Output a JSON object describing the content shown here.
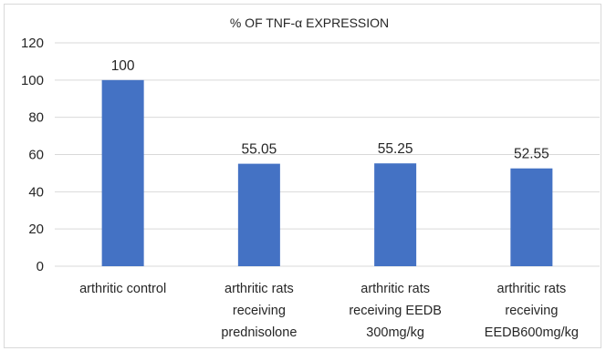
{
  "chart_data": {
    "type": "bar",
    "title": "%  OF TNF-α EXPRESSION",
    "categories": [
      [
        "arthritic control"
      ],
      [
        "arthritic rats",
        "receiving",
        "prednisolone"
      ],
      [
        "arthritic rats",
        "receiving EEDB",
        "300mg/kg"
      ],
      [
        "arthritic rats",
        "receiving",
        "EEDB600mg/kg"
      ]
    ],
    "values": [
      100,
      55.05,
      55.25,
      52.55
    ],
    "data_labels": [
      "100",
      "55.05",
      "55.25",
      "52.55"
    ],
    "ylim": [
      0,
      120
    ],
    "yticks": [
      0,
      20,
      40,
      60,
      80,
      100,
      120
    ],
    "grid": true,
    "legend": "none",
    "bar_color": "#4472c4",
    "grid_color": "#d9d9d9"
  }
}
